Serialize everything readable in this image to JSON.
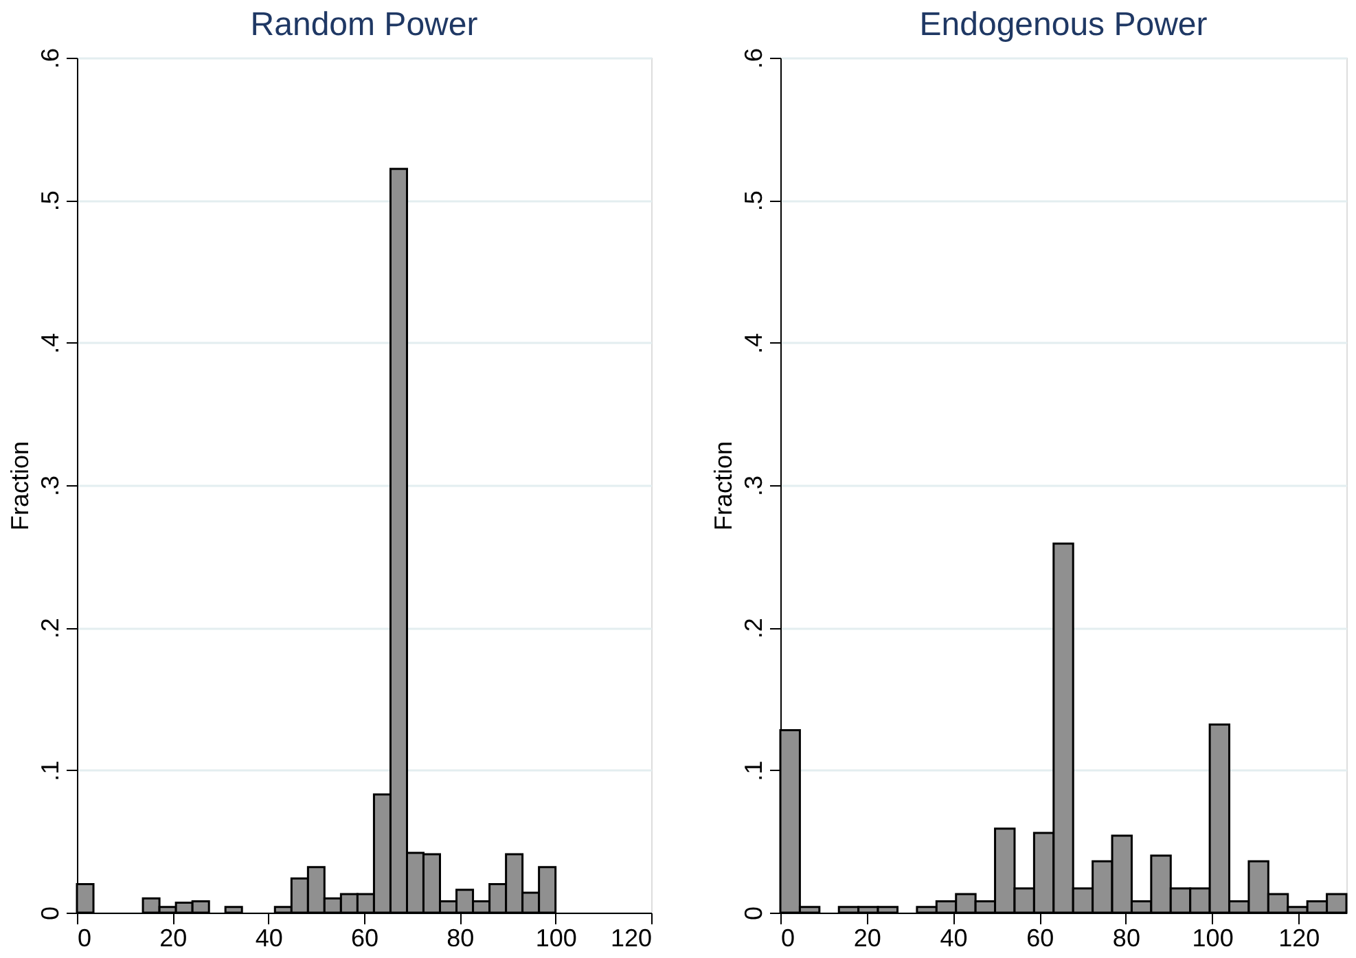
{
  "chart_data": [
    {
      "type": "histogram",
      "title": "Random Power",
      "ylabel": "Fraction",
      "color": "#909090",
      "bins": [
        0,
        3.45,
        6.9,
        10.34,
        13.79,
        17.24,
        20.69,
        24.14,
        27.59,
        31.03,
        34.48,
        37.93,
        41.38,
        44.83,
        48.28,
        51.72,
        55.17,
        58.62,
        62.07,
        65.52,
        68.97,
        72.41,
        75.86,
        79.31,
        82.76,
        86.21,
        89.66,
        93.1,
        96.55,
        100
      ],
      "values": [
        0.02,
        0,
        0,
        0,
        0.01,
        0.004,
        0.007,
        0.008,
        0,
        0.004,
        0,
        0,
        0.004,
        0.024,
        0.032,
        0.01,
        0.013,
        0.013,
        0.083,
        0.522,
        0.042,
        0.041,
        0.008,
        0.016,
        0.008,
        0.02,
        0.041,
        0.014,
        0.032
      ],
      "xlim": [
        0,
        120
      ],
      "xticks": [
        0,
        20,
        40,
        60,
        80,
        100,
        120
      ],
      "ylim": [
        0,
        0.6
      ],
      "yticks": [
        0,
        {
          "value": 0.1,
          "label": ".1"
        },
        {
          "value": 0.2,
          "label": ".2"
        },
        {
          "value": 0.3,
          "label": ".3"
        },
        {
          "value": 0.4,
          "label": ".4"
        },
        {
          "value": 0.5,
          "label": ".5"
        },
        {
          "value": 0.6,
          "label": ".6"
        }
      ],
      "grid": "y"
    },
    {
      "type": "histogram",
      "title": "Endogenous Power",
      "ylabel": "Fraction",
      "color": "#909090",
      "bins": [
        0,
        4.52,
        9.04,
        13.56,
        18.08,
        22.6,
        27.12,
        31.64,
        36.16,
        40.68,
        45.2,
        49.72,
        54.24,
        58.76,
        63.28,
        67.8,
        72.32,
        76.84,
        81.36,
        85.88,
        90.4,
        94.92,
        99.44,
        103.96,
        108.48,
        113,
        117.52,
        122.04,
        126.56,
        131.08
      ],
      "values": [
        0.128,
        0.004,
        0,
        0.004,
        0.004,
        0.004,
        0,
        0.004,
        0.008,
        0.013,
        0.008,
        0.059,
        0.017,
        0.056,
        0.259,
        0.017,
        0.036,
        0.054,
        0.008,
        0.04,
        0.017,
        0.017,
        0.132,
        0.008,
        0.036,
        0.013,
        0.004,
        0.008,
        0.013
      ],
      "xlim": [
        0,
        131.08
      ],
      "xticks": [
        0,
        20,
        40,
        60,
        80,
        100,
        120
      ],
      "ylim": [
        0,
        0.6
      ],
      "yticks": [
        0,
        {
          "value": 0.1,
          "label": ".1"
        },
        {
          "value": 0.2,
          "label": ".2"
        },
        {
          "value": 0.3,
          "label": ".3"
        },
        {
          "value": 0.4,
          "label": ".4"
        },
        {
          "value": 0.5,
          "label": ".5"
        },
        {
          "value": 0.6,
          "label": ".6"
        }
      ],
      "grid": "y"
    }
  ]
}
